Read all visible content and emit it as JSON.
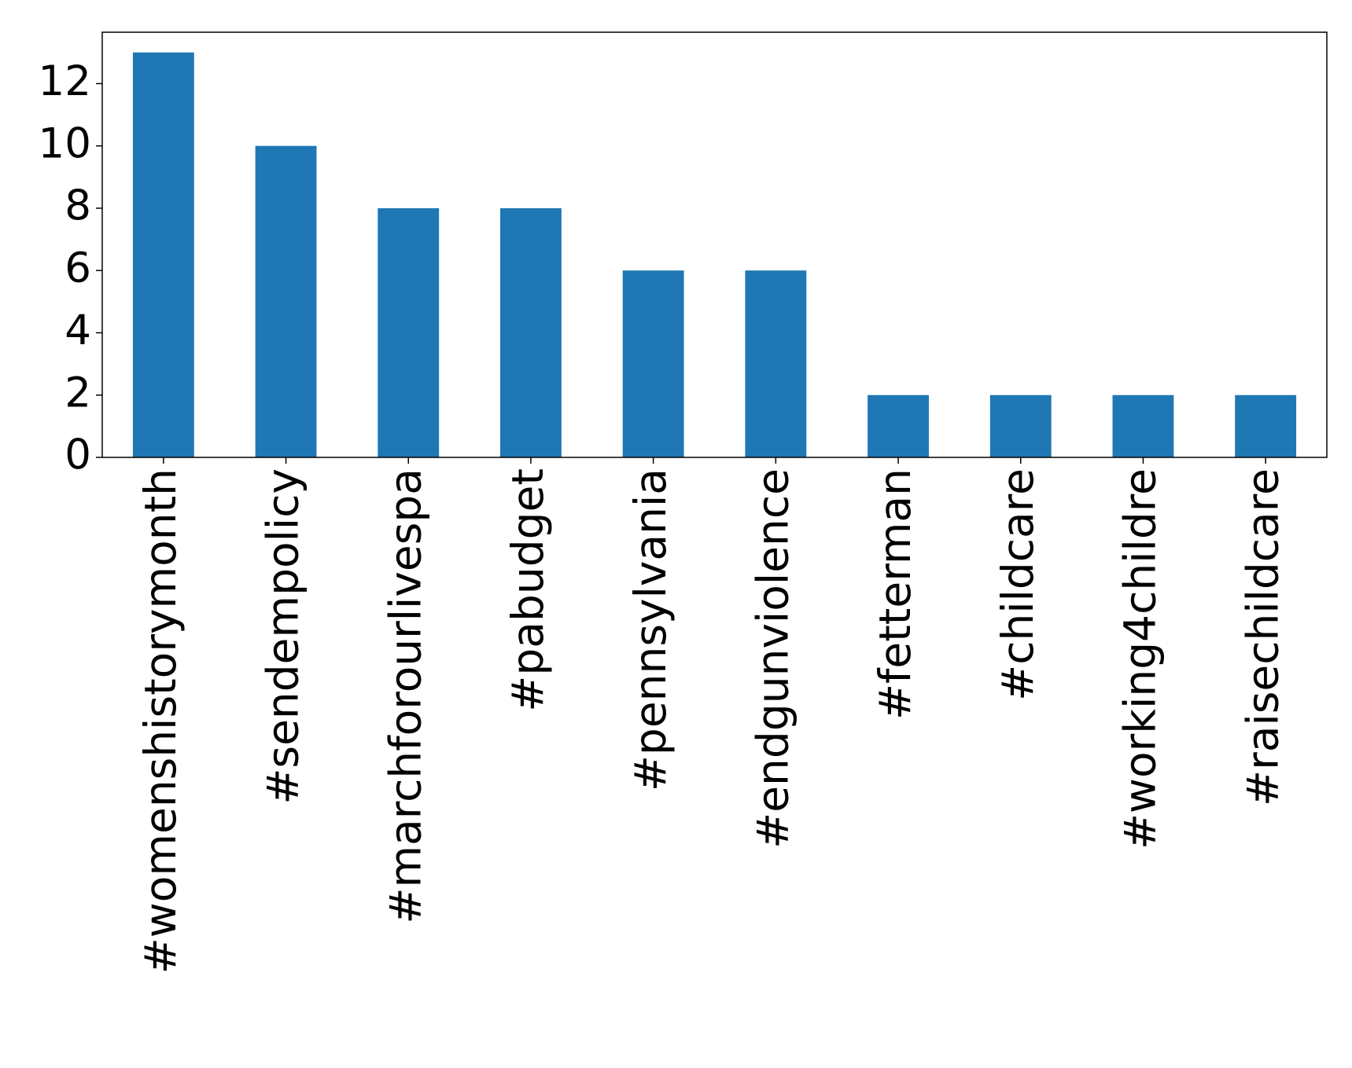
{
  "chart_data": {
    "type": "bar",
    "categories": [
      "#womenshistorymonth",
      "#sendempolicy",
      "#marchforourlivespa",
      "#pabudget",
      "#pennsylvania",
      "#endgunviolence",
      "#fetterman",
      "#childcare",
      "#working4childre",
      "#raisechildcare"
    ],
    "values": [
      13,
      10,
      8,
      8,
      6,
      6,
      2,
      2,
      2,
      2
    ],
    "color": "#1f77b4",
    "ylim": [
      0,
      13.65
    ],
    "yticks": [
      0,
      2,
      4,
      6,
      8,
      10,
      12
    ],
    "grid": false
  }
}
